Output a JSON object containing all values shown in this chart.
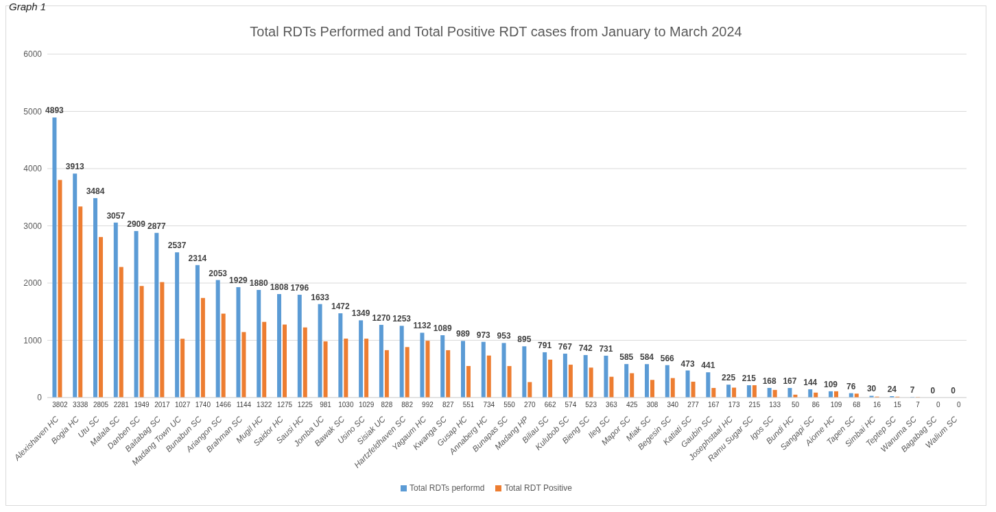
{
  "chart_data": {
    "type": "bar",
    "title": "Total RDTs Performed and Total Positive RDT cases from January to March 2024",
    "annotations": [
      "Graph 1"
    ],
    "categories": [
      "Alexishaven HC",
      "Bogia HC",
      "Utu SC",
      "Malala SC",
      "Danben SC",
      "Baitabag SC",
      "Madang Town UC",
      "Bunabun SC",
      "Ariangon SC",
      "Brahman SC",
      "Mugil HC",
      "Saidor HC",
      "Sausi HC",
      "Jomba UC",
      "Bawak SC",
      "Usino SC",
      "Sisiak UC",
      "Hartzfeldhaven SC",
      "Yagaum HC",
      "Kwanga SC",
      "Gusap HC",
      "Annaberg HC",
      "Bunapas SC",
      "Madang HP",
      "Biliau SC",
      "Kulubob SC",
      "Bieng SC",
      "Ileg SC",
      "Mapor SC",
      "Miak SC",
      "Begesin SC",
      "Katiati SC",
      "Gaubin SC",
      "Josephstaal HC",
      "Ramu Sugar SC",
      "Igos SC",
      "Bundi HC",
      "Sangapi SC",
      "Aiome HC",
      "Tapen SC",
      "Simbai HC",
      "Teptep SC",
      "Wanuma SC",
      "Bagabag SC",
      "Walium SC"
    ],
    "series": [
      {
        "name": "Total RDTs performd",
        "color": "#5b9bd5",
        "values": [
          4893,
          3913,
          3484,
          3057,
          2909,
          2877,
          2537,
          2314,
          2053,
          1929,
          1880,
          1808,
          1796,
          1633,
          1472,
          1349,
          1270,
          1253,
          1132,
          1089,
          989,
          973,
          953,
          895,
          791,
          767,
          742,
          731,
          585,
          584,
          566,
          473,
          441,
          225,
          215,
          168,
          167,
          144,
          109,
          76,
          30,
          24,
          7,
          0,
          0
        ]
      },
      {
        "name": "Total RDT Positive",
        "color": "#ed7d31",
        "values": [
          3802,
          3338,
          2805,
          2281,
          1949,
          2017,
          1027,
          1740,
          1466,
          1144,
          1322,
          1275,
          1225,
          981,
          1030,
          1029,
          828,
          882,
          992,
          827,
          551,
          734,
          550,
          270,
          662,
          574,
          523,
          363,
          425,
          308,
          340,
          277,
          167,
          173,
          215,
          133,
          50,
          86,
          109,
          68,
          16,
          15,
          7,
          0,
          0
        ]
      }
    ],
    "ylim": [
      0,
      6000
    ],
    "yticks": [
      0,
      1000,
      2000,
      3000,
      4000,
      5000,
      6000
    ],
    "grid": "y",
    "legend": "bottom",
    "data_labels": true
  }
}
